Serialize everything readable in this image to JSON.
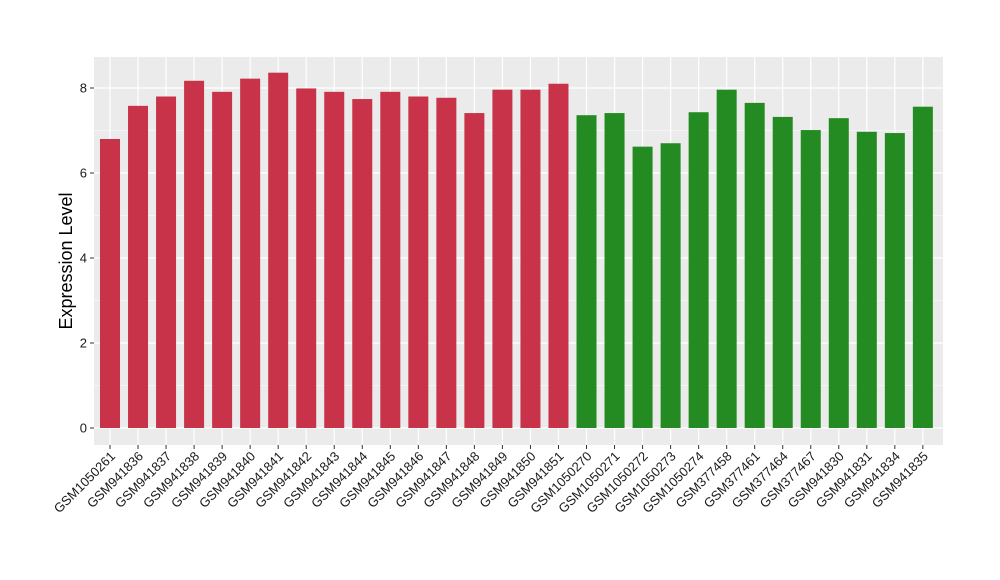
{
  "chart_data": {
    "type": "bar",
    "title": "",
    "xlabel": "",
    "ylabel": "Expression Level",
    "ylim": [
      0,
      8.7
    ],
    "yticks": [
      0,
      2,
      4,
      6,
      8
    ],
    "grid": true,
    "legend": "none",
    "colors": {
      "group_a": "#c8334a",
      "group_b": "#238b22",
      "panel_bg": "#ebebeb",
      "grid": "#ffffff"
    },
    "categories": [
      "GSM1050261",
      "GSM941836",
      "GSM941837",
      "GSM941838",
      "GSM941839",
      "GSM941840",
      "GSM941841",
      "GSM941842",
      "GSM941843",
      "GSM941844",
      "GSM941845",
      "GSM941846",
      "GSM941847",
      "GSM941848",
      "GSM941849",
      "GSM941850",
      "GSM941851",
      "GSM1050270",
      "GSM1050271",
      "GSM1050272",
      "GSM1050273",
      "GSM1050274",
      "GSM377458",
      "GSM377461",
      "GSM377464",
      "GSM377467",
      "GSM941830",
      "GSM941831",
      "GSM941834",
      "GSM941835"
    ],
    "values": [
      6.8,
      7.58,
      7.8,
      8.17,
      7.91,
      8.22,
      8.36,
      7.99,
      7.91,
      7.74,
      7.91,
      7.8,
      7.77,
      7.41,
      7.96,
      7.96,
      8.1,
      7.36,
      7.41,
      6.62,
      6.7,
      7.43,
      7.96,
      7.65,
      7.32,
      7.01,
      7.29,
      6.97,
      6.94,
      7.56
    ],
    "groups": [
      "a",
      "a",
      "a",
      "a",
      "a",
      "a",
      "a",
      "a",
      "a",
      "a",
      "a",
      "a",
      "a",
      "a",
      "a",
      "a",
      "a",
      "b",
      "b",
      "b",
      "b",
      "b",
      "b",
      "b",
      "b",
      "b",
      "b",
      "b",
      "b",
      "b"
    ]
  }
}
